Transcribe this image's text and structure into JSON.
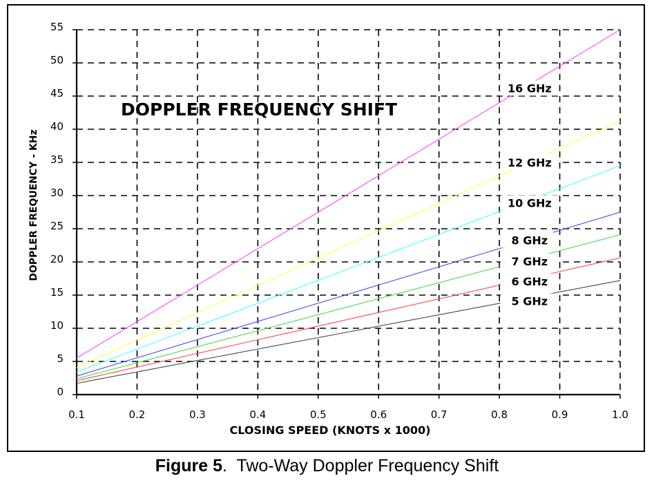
{
  "caption": {
    "figure_label": "Figure 5",
    "separator": ".",
    "text": "Two-Way Doppler Frequency Shift"
  },
  "chart_data": {
    "type": "line",
    "title": "DOPPLER FREQUENCY SHIFT",
    "xlabel": "CLOSING SPEED (KNOTS x 1000)",
    "ylabel": "DOPPLER FREQUENCY  -  KHz",
    "xlim": [
      0.1,
      1.0
    ],
    "ylim": [
      0,
      55
    ],
    "x_ticks": [
      0.1,
      0.2,
      0.3,
      0.4,
      0.5,
      0.6,
      0.7,
      0.8,
      0.9,
      1.0
    ],
    "x_tick_labels": [
      "0.1",
      "0.2",
      "0.3",
      "0.4",
      "0.5",
      "0.6",
      "0.7",
      "0.8",
      "0.9",
      "1.0"
    ],
    "y_ticks": [
      0,
      5,
      10,
      15,
      20,
      25,
      30,
      35,
      40,
      45,
      50,
      55
    ],
    "y_tick_labels": [
      "0",
      "5",
      "10",
      "15",
      "20",
      "25",
      "30",
      "35",
      "40",
      "45",
      "50",
      "55"
    ],
    "grid": true,
    "grid_style": "dashed",
    "x": [
      0.1,
      1.0
    ],
    "series": [
      {
        "name": "16 GHz",
        "color": "#ff55ff",
        "values": [
          5.5,
          55.0
        ],
        "label_x": 0.85,
        "label_y": 46.2
      },
      {
        "name": "12 GHz",
        "color": "#ffff55",
        "values": [
          4.1,
          41.2
        ],
        "label_x": 0.85,
        "label_y": 35.0
      },
      {
        "name": "10 GHz",
        "color": "#55ffff",
        "values": [
          3.4,
          34.5
        ],
        "label_x": 0.85,
        "label_y": 28.9
      },
      {
        "name": "8 GHz",
        "color": "#5555ff",
        "values": [
          2.8,
          27.5
        ],
        "label_x": 0.85,
        "label_y": 23.3
      },
      {
        "name": "7 GHz",
        "color": "#55dd55",
        "values": [
          2.4,
          24.1
        ],
        "label_x": 0.85,
        "label_y": 20.1
      },
      {
        "name": "6 GHz",
        "color": "#ff5555",
        "values": [
          2.1,
          20.6
        ],
        "label_x": 0.85,
        "label_y": 17.1
      },
      {
        "name": "5 GHz",
        "color": "#555555",
        "values": [
          1.7,
          17.2
        ],
        "label_x": 0.85,
        "label_y": 14.1
      }
    ]
  }
}
